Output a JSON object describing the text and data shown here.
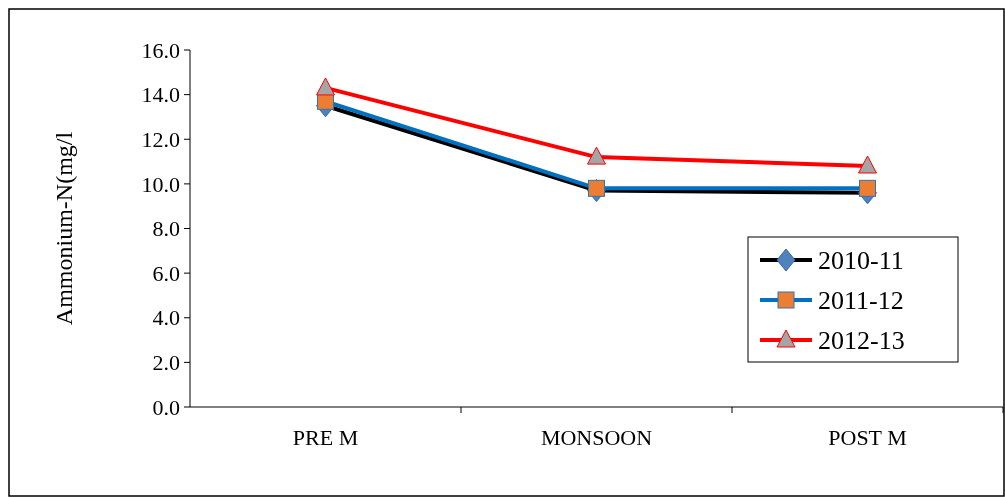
{
  "chart_data": {
    "type": "line",
    "ylabel": "Ammonium-N(mg/l",
    "categories": [
      "PRE M",
      "MONSOON",
      "POST M"
    ],
    "series": [
      {
        "name": "2010-11",
        "color": "#000000",
        "marker": "diamond",
        "values": [
          13.5,
          9.7,
          9.6
        ]
      },
      {
        "name": "2011-12",
        "color": "#0070c0",
        "marker": "square",
        "values": [
          13.7,
          9.8,
          9.8
        ]
      },
      {
        "name": "2012-13",
        "color": "#ff0000",
        "marker": "triangle",
        "values": [
          14.3,
          11.2,
          10.8
        ]
      }
    ],
    "ylim": [
      0,
      16
    ],
    "yticks": [
      {
        "value": 0,
        "label": "0.0"
      },
      {
        "value": 2,
        "label": "2.0"
      },
      {
        "value": 4,
        "label": "4.0"
      },
      {
        "value": 6,
        "label": "6.0"
      },
      {
        "value": 8,
        "label": "8.0"
      },
      {
        "value": 10,
        "label": "10.0"
      },
      {
        "value": 12,
        "label": "12.0"
      },
      {
        "value": 14,
        "label": "14.0"
      },
      {
        "value": 16,
        "label": "16.0"
      }
    ],
    "grid": false,
    "legend": "right"
  }
}
